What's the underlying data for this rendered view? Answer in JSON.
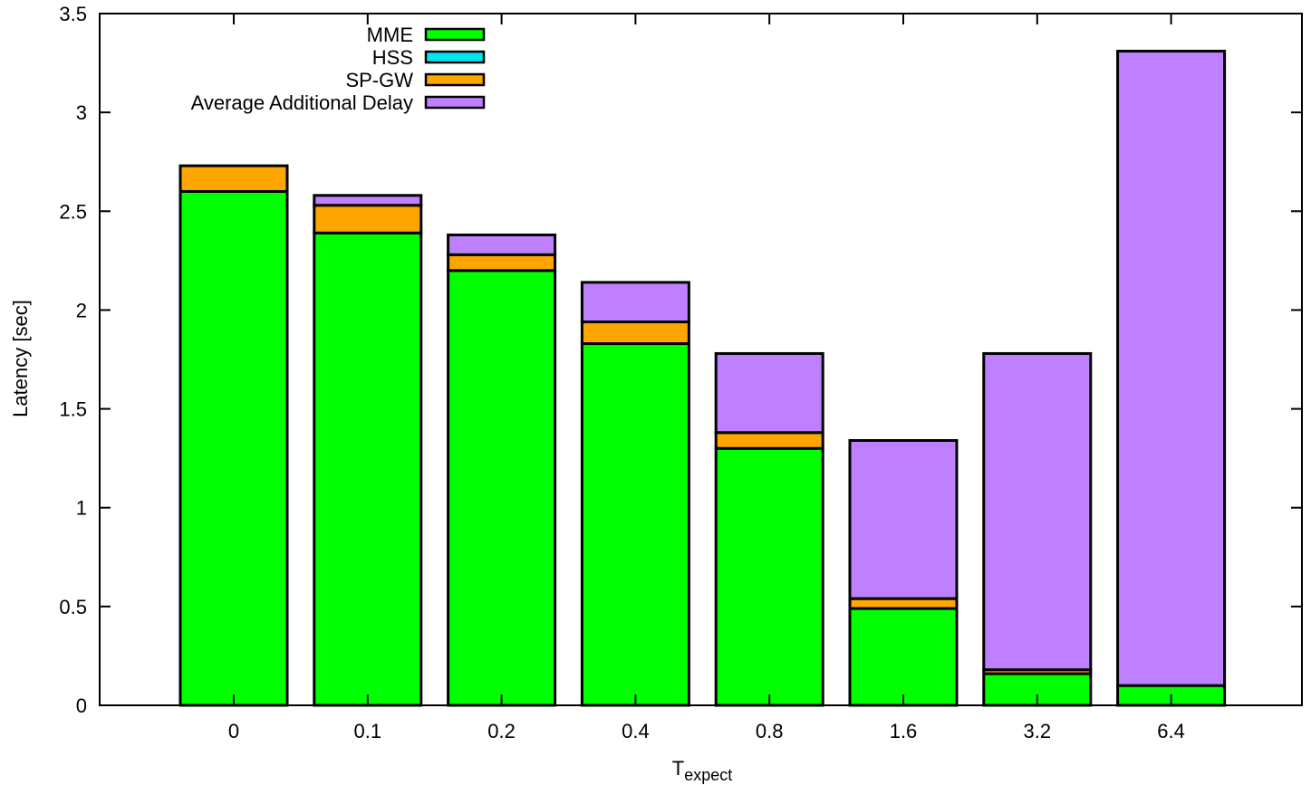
{
  "chart_data": {
    "type": "bar",
    "stacked": true,
    "categories": [
      "0",
      "0.1",
      "0.2",
      "0.4",
      "0.8",
      "1.6",
      "3.2",
      "6.4"
    ],
    "series": [
      {
        "name": "MME",
        "color": "#00ff00",
        "values": [
          2.6,
          2.39,
          2.2,
          1.83,
          1.3,
          0.49,
          0.16,
          0.1
        ]
      },
      {
        "name": "HSS",
        "color": "#00e5ee",
        "values": [
          0.0,
          0.0,
          0.0,
          0.0,
          0.0,
          0.0,
          0.0,
          0.0
        ]
      },
      {
        "name": "SP-GW",
        "color": "#ffa500",
        "values": [
          0.13,
          0.14,
          0.08,
          0.11,
          0.08,
          0.05,
          0.02,
          0.0
        ]
      },
      {
        "name": "Average Additional Delay",
        "color": "#bf80ff",
        "values": [
          0.0,
          0.05,
          0.1,
          0.2,
          0.4,
          0.8,
          1.6,
          3.21
        ]
      }
    ],
    "xlabel": "T",
    "xlabel_subscript": "expect",
    "ylabel": "Latency [sec]",
    "ylim": [
      0,
      3.5
    ],
    "yticks": [
      "0",
      "0.5",
      "1",
      "1.5",
      "2",
      "2.5",
      "3",
      "3.5"
    ],
    "ytick_values": [
      0,
      0.5,
      1,
      1.5,
      2,
      2.5,
      3,
      3.5
    ],
    "legend_position": "top-left",
    "grid": false
  }
}
